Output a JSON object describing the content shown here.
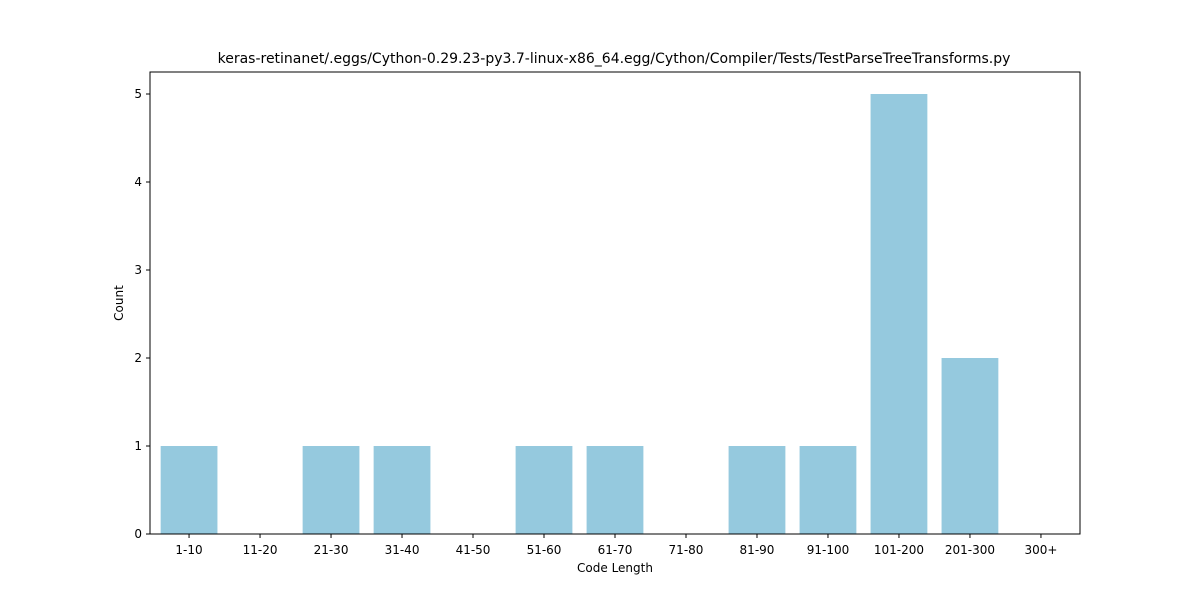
{
  "chart_data": {
    "type": "bar",
    "title": "keras-retinanet/.eggs/Cython-0.29.23-py3.7-linux-x86_64.egg/Cython/Compiler/Tests/TestParseTreeTransforms.py",
    "xlabel": "Code Length",
    "ylabel": "Count",
    "categories": [
      "1-10",
      "11-20",
      "21-30",
      "31-40",
      "41-50",
      "51-60",
      "61-70",
      "71-80",
      "81-90",
      "91-100",
      "101-200",
      "201-300",
      "300+"
    ],
    "values": [
      1,
      0,
      1,
      1,
      0,
      1,
      1,
      0,
      1,
      1,
      5,
      2,
      0
    ],
    "ylim": [
      0,
      5.25
    ],
    "yticks": [
      0,
      1,
      2,
      3,
      4,
      5
    ],
    "grid": false,
    "bar_color": "#95c9de",
    "axis_color": "#000000"
  }
}
